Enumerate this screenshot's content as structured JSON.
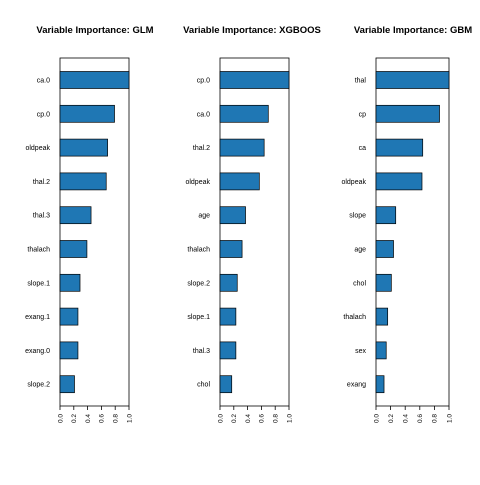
{
  "chart_data": [
    {
      "type": "bar",
      "orientation": "horizontal",
      "title": "Variable Importance: GLM",
      "categories": [
        "ca.0",
        "cp.0",
        "oldpeak",
        "thal.2",
        "thal.3",
        "thalach",
        "slope.1",
        "exang.1",
        "exang.0",
        "slope.2"
      ],
      "values": [
        1.0,
        0.79,
        0.69,
        0.67,
        0.45,
        0.39,
        0.29,
        0.26,
        0.26,
        0.21
      ],
      "xlim": [
        0,
        1
      ],
      "xticks": [
        "0.0",
        "0.2",
        "0.4",
        "0.6",
        "0.8",
        "1.0"
      ],
      "bar_color": "#1f77b4",
      "grid": false
    },
    {
      "type": "bar",
      "orientation": "horizontal",
      "title": "Variable Importance: XGBOOS",
      "categories": [
        "cp.0",
        "ca.0",
        "thal.2",
        "oldpeak",
        "age",
        "thalach",
        "slope.2",
        "slope.1",
        "thal.3",
        "chol"
      ],
      "values": [
        1.0,
        0.7,
        0.64,
        0.57,
        0.37,
        0.32,
        0.25,
        0.23,
        0.23,
        0.17
      ],
      "xlim": [
        0,
        1
      ],
      "xticks": [
        "0.0",
        "0.2",
        "0.4",
        "0.6",
        "0.8",
        "1.0"
      ],
      "bar_color": "#1f77b4",
      "grid": false
    },
    {
      "type": "bar",
      "orientation": "horizontal",
      "title": "Variable Importance: GBM",
      "categories": [
        "thal",
        "cp",
        "ca",
        "oldpeak",
        "slope",
        "age",
        "chol",
        "thalach",
        "sex",
        "exang"
      ],
      "values": [
        1.0,
        0.87,
        0.64,
        0.63,
        0.27,
        0.24,
        0.21,
        0.16,
        0.14,
        0.11
      ],
      "xlim": [
        0,
        1
      ],
      "xticks": [
        "0.0",
        "0.2",
        "0.4",
        "0.6",
        "0.8",
        "1.0"
      ],
      "bar_color": "#1f77b4",
      "grid": false
    }
  ]
}
